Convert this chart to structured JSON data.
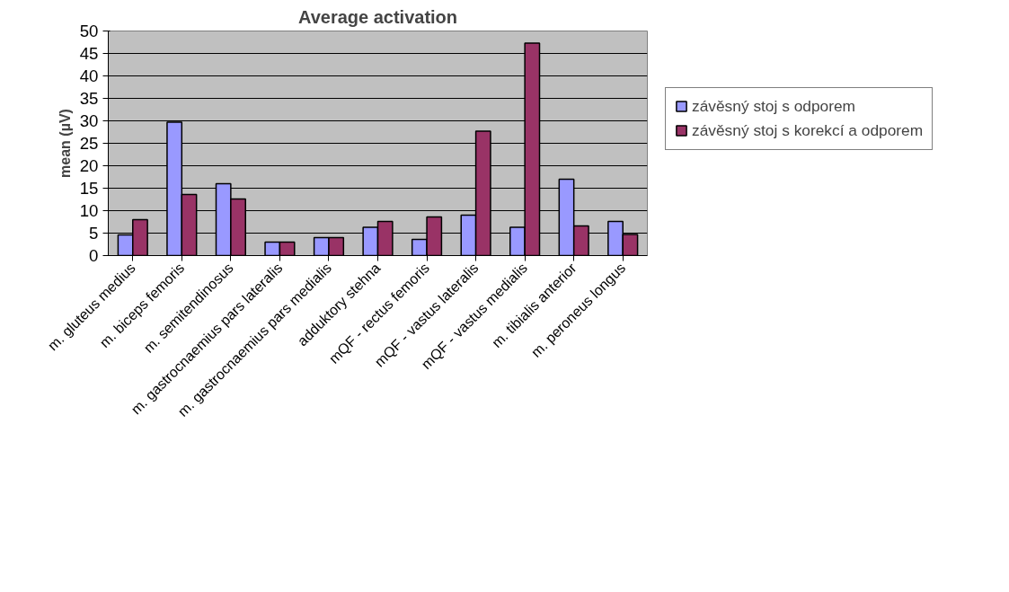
{
  "chart_data": {
    "type": "bar",
    "title": "Average activation",
    "ylabel": "mean (µV)",
    "categories": [
      "m. gluteus medius",
      "m. biceps femoris",
      "m. semitendinosus",
      "m. gastrocnaemius pars lateralis",
      "m. gastrocnaemius pars medialis",
      "adduktory stehna",
      "mQF - rectus femoris",
      "mQF - vastus lateralis",
      "mQF - vastus medialis",
      "m. tibialis anterior",
      "m. peroneus longus"
    ],
    "series": [
      {
        "name": "závěsný stoj s odporem",
        "color": "#9999ff",
        "values": [
          4.6,
          29.7,
          16,
          3,
          4,
          6.3,
          3.6,
          9,
          6.3,
          17,
          7.6
        ]
      },
      {
        "name": "závěsný stoj s korekcí a odporem",
        "color": "#993366",
        "values": [
          8,
          13.6,
          12.6,
          3,
          4,
          7.6,
          8.6,
          27.7,
          47.3,
          6.6,
          4.7
        ]
      }
    ],
    "ylim": [
      0,
      50
    ],
    "yticks": [
      0,
      5,
      10,
      15,
      20,
      25,
      30,
      35,
      40,
      45,
      50
    ],
    "grid": "y",
    "legend": "right"
  }
}
